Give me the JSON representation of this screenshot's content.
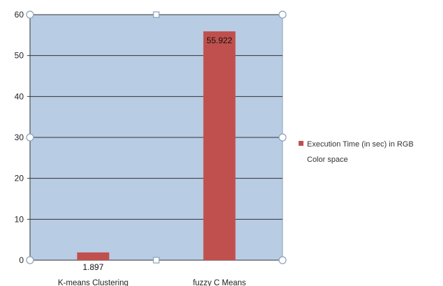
{
  "chart_data": {
    "type": "bar",
    "categories": [
      "K-means Clustering",
      "fuzzy C Means"
    ],
    "series": [
      {
        "name": "Execution Time (in sec) in RGB Color space",
        "values": [
          1.897,
          55.922
        ],
        "color": "#c0504d"
      }
    ],
    "data_labels": [
      "1.897",
      "55.922"
    ],
    "ylim": [
      0,
      60
    ],
    "yticks": [
      0,
      10,
      20,
      30,
      40,
      50,
      60
    ],
    "grid": true,
    "legend_position": "right",
    "legend_lines": [
      "Execution Time (in sec) in RGB",
      "Color space"
    ],
    "plot_background": "#b8cce4"
  }
}
